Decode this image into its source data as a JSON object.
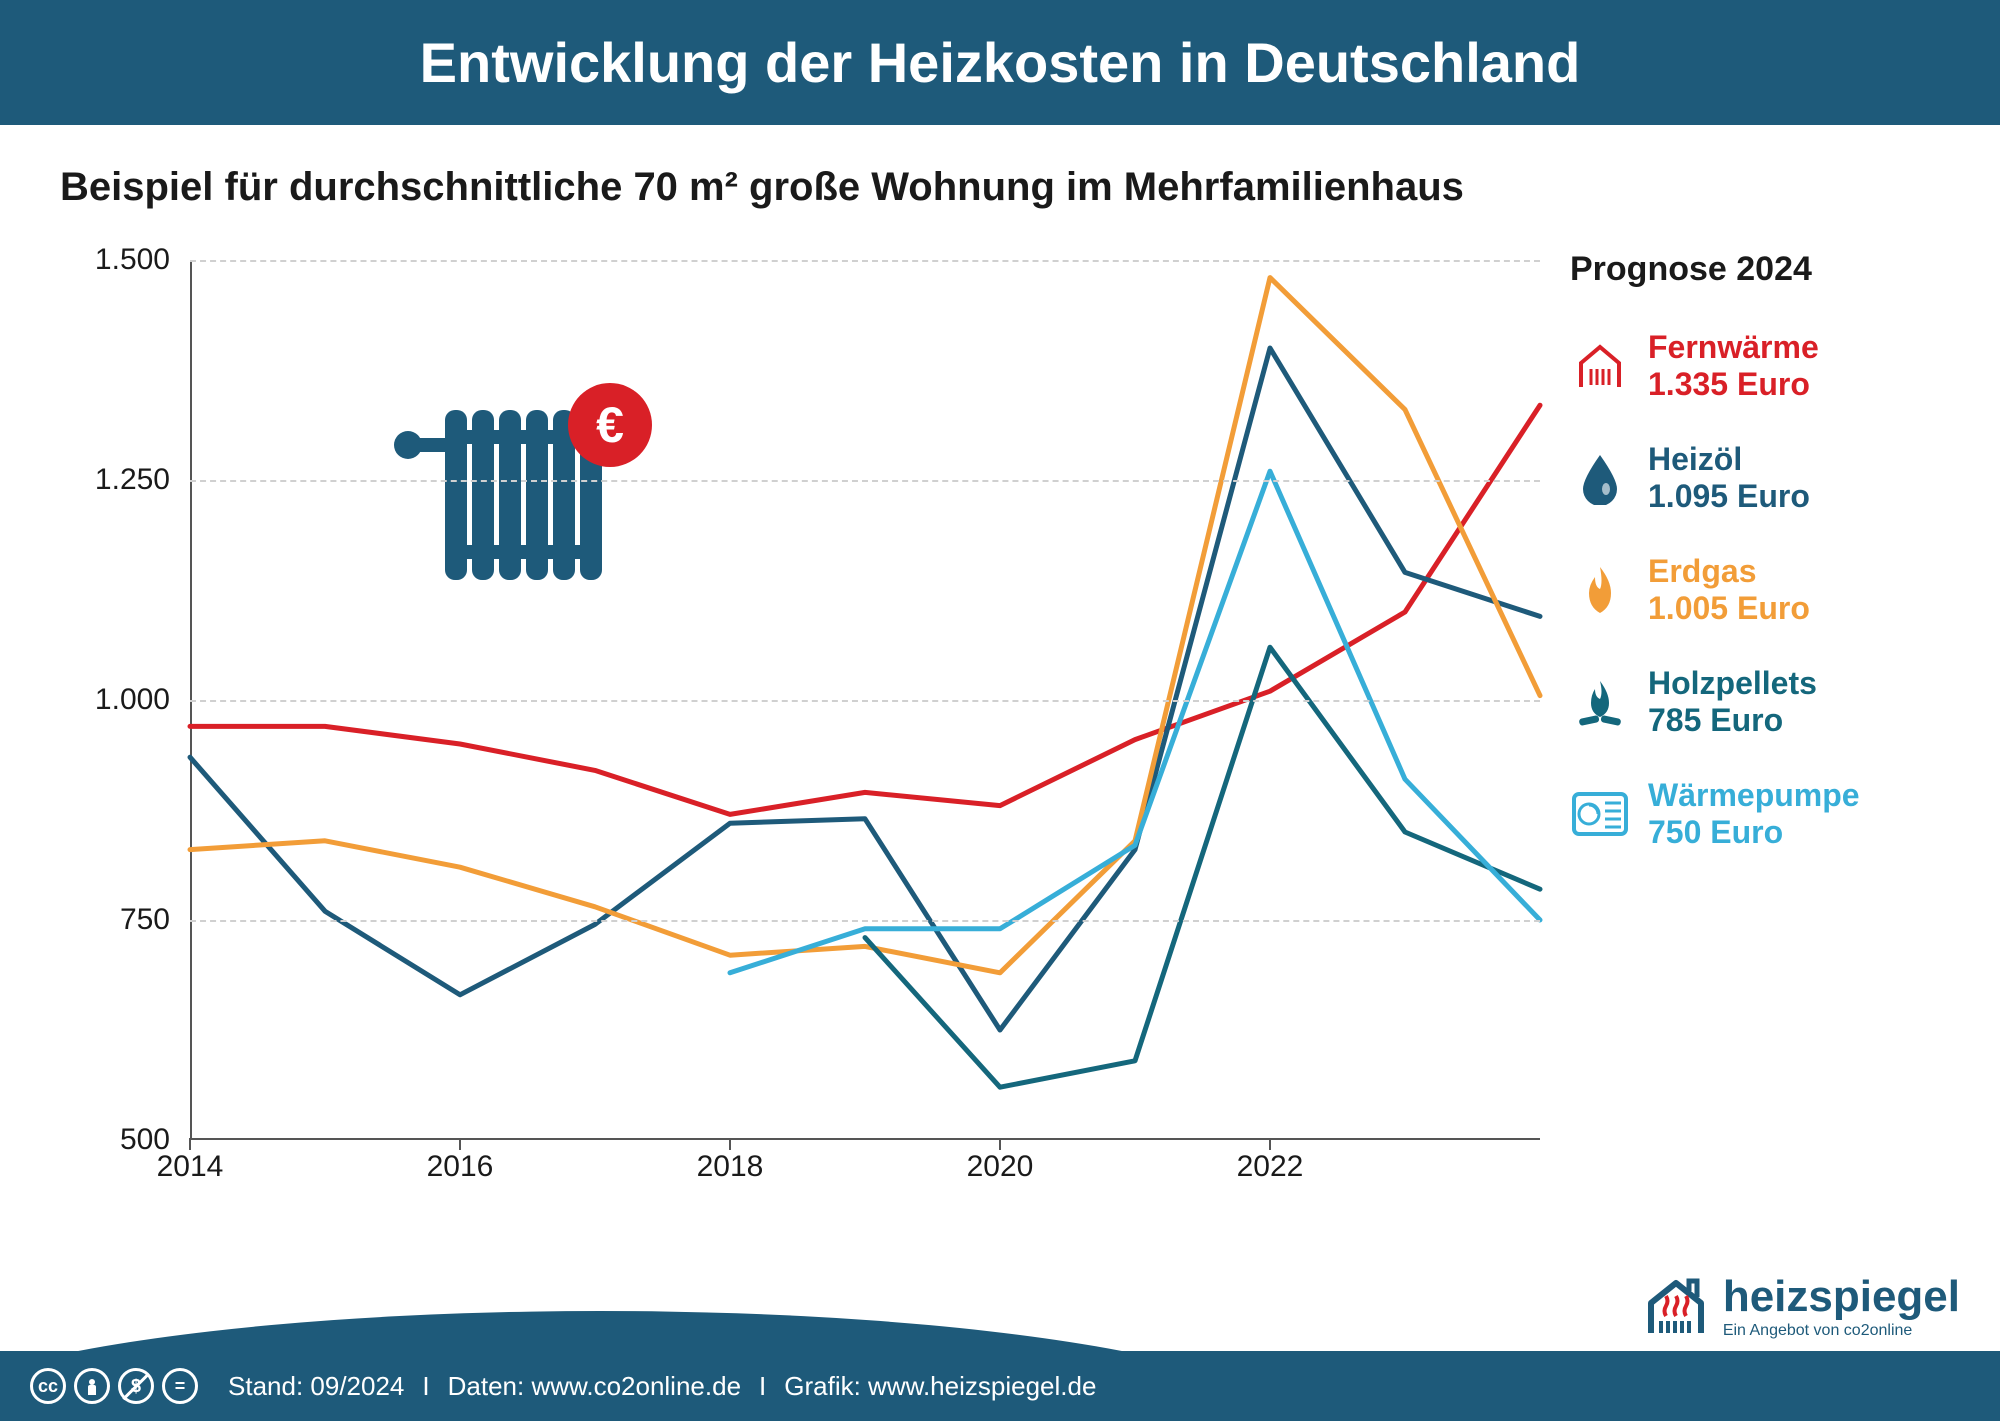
{
  "header": {
    "title": "Entwicklung der Heizkosten in Deutschland"
  },
  "subtitle": "Beispiel für durchschnittliche 70 m² große Wohnung im Mehrfamilienhaus",
  "chart": {
    "type": "line",
    "ylim": [
      500,
      1500
    ],
    "ytick_step": 250,
    "yticks": [
      "500",
      "750",
      "1.000",
      "1.250",
      "1.500"
    ],
    "xlim": [
      2014,
      2024
    ],
    "xticks": [
      2014,
      2016,
      2018,
      2020,
      2022
    ],
    "grid_color": "#d0d0d0",
    "axis_color": "#555555",
    "background_color": "#ffffff",
    "line_width": 5,
    "label_fontsize": 30,
    "series": [
      {
        "key": "fernwaerme",
        "name": "Fernwärme",
        "color": "#d92027",
        "final_label": "1.335 Euro",
        "final_value": 1335,
        "years": [
          2014,
          2015,
          2016,
          2017,
          2018,
          2019,
          2020,
          2021,
          2022,
          2023,
          2024
        ],
        "values": [
          970,
          970,
          950,
          920,
          870,
          895,
          880,
          955,
          1010,
          1100,
          1335
        ]
      },
      {
        "key": "heizoel",
        "name": "Heizöl",
        "color": "#1e5a7a",
        "final_label": "1.095 Euro",
        "final_value": 1095,
        "years": [
          2014,
          2015,
          2016,
          2017,
          2018,
          2019,
          2020,
          2021,
          2022,
          2023,
          2024
        ],
        "values": [
          935,
          760,
          665,
          745,
          860,
          865,
          625,
          830,
          1400,
          1145,
          1095
        ]
      },
      {
        "key": "erdgas",
        "name": "Erdgas",
        "color": "#f29d38",
        "final_label": "1.005 Euro",
        "final_value": 1005,
        "years": [
          2014,
          2015,
          2016,
          2017,
          2018,
          2019,
          2020,
          2021,
          2022,
          2023,
          2024
        ],
        "values": [
          830,
          840,
          810,
          765,
          710,
          720,
          690,
          840,
          1480,
          1330,
          1005
        ]
      },
      {
        "key": "holzpellets",
        "name": "Holzpellets",
        "color": "#14677c",
        "final_label": "785 Euro",
        "final_value": 785,
        "years": [
          2019,
          2020,
          2021,
          2022,
          2023,
          2024
        ],
        "values": [
          730,
          560,
          590,
          1060,
          850,
          785
        ]
      },
      {
        "key": "waermepumpe",
        "name": "Wärmepumpe",
        "color": "#37aed8",
        "final_label": "750 Euro",
        "final_value": 750,
        "years": [
          2018,
          2019,
          2020,
          2021,
          2022,
          2023,
          2024
        ],
        "values": [
          690,
          740,
          740,
          835,
          1260,
          910,
          750
        ]
      }
    ]
  },
  "legend": {
    "title": "Prognose 2024",
    "items": [
      {
        "key": "fernwaerme",
        "name": "Fernwärme",
        "value": "1.335 Euro",
        "color": "#d92027",
        "icon": "district-heat"
      },
      {
        "key": "heizoel",
        "name": "Heizöl",
        "value": "1.095 Euro",
        "color": "#1e5a7a",
        "icon": "oil-drop"
      },
      {
        "key": "erdgas",
        "name": "Erdgas",
        "value": "1.005 Euro",
        "color": "#f29d38",
        "icon": "flame"
      },
      {
        "key": "holzpellets",
        "name": "Holzpellets",
        "value": "785 Euro",
        "color": "#14677c",
        "icon": "wood-fire"
      },
      {
        "key": "waermepumpe",
        "name": "Wärmepumpe",
        "value": "750 Euro",
        "color": "#37aed8",
        "icon": "heat-pump"
      }
    ]
  },
  "decor": {
    "radiator_color": "#1e5a7a",
    "euro_badge_color": "#d92027",
    "euro_symbol": "€"
  },
  "footer": {
    "date": "Stand: 09/2024",
    "data_source": "Daten: www.co2online.de",
    "graphic_source": "Grafik: www.heizspiegel.de",
    "cc": [
      "cc",
      "by",
      "nc",
      "nd"
    ]
  },
  "brand": {
    "name": "heizspiegel",
    "sub": "Ein Angebot von co2online",
    "color": "#1e5a7a",
    "accent": "#d92027"
  }
}
